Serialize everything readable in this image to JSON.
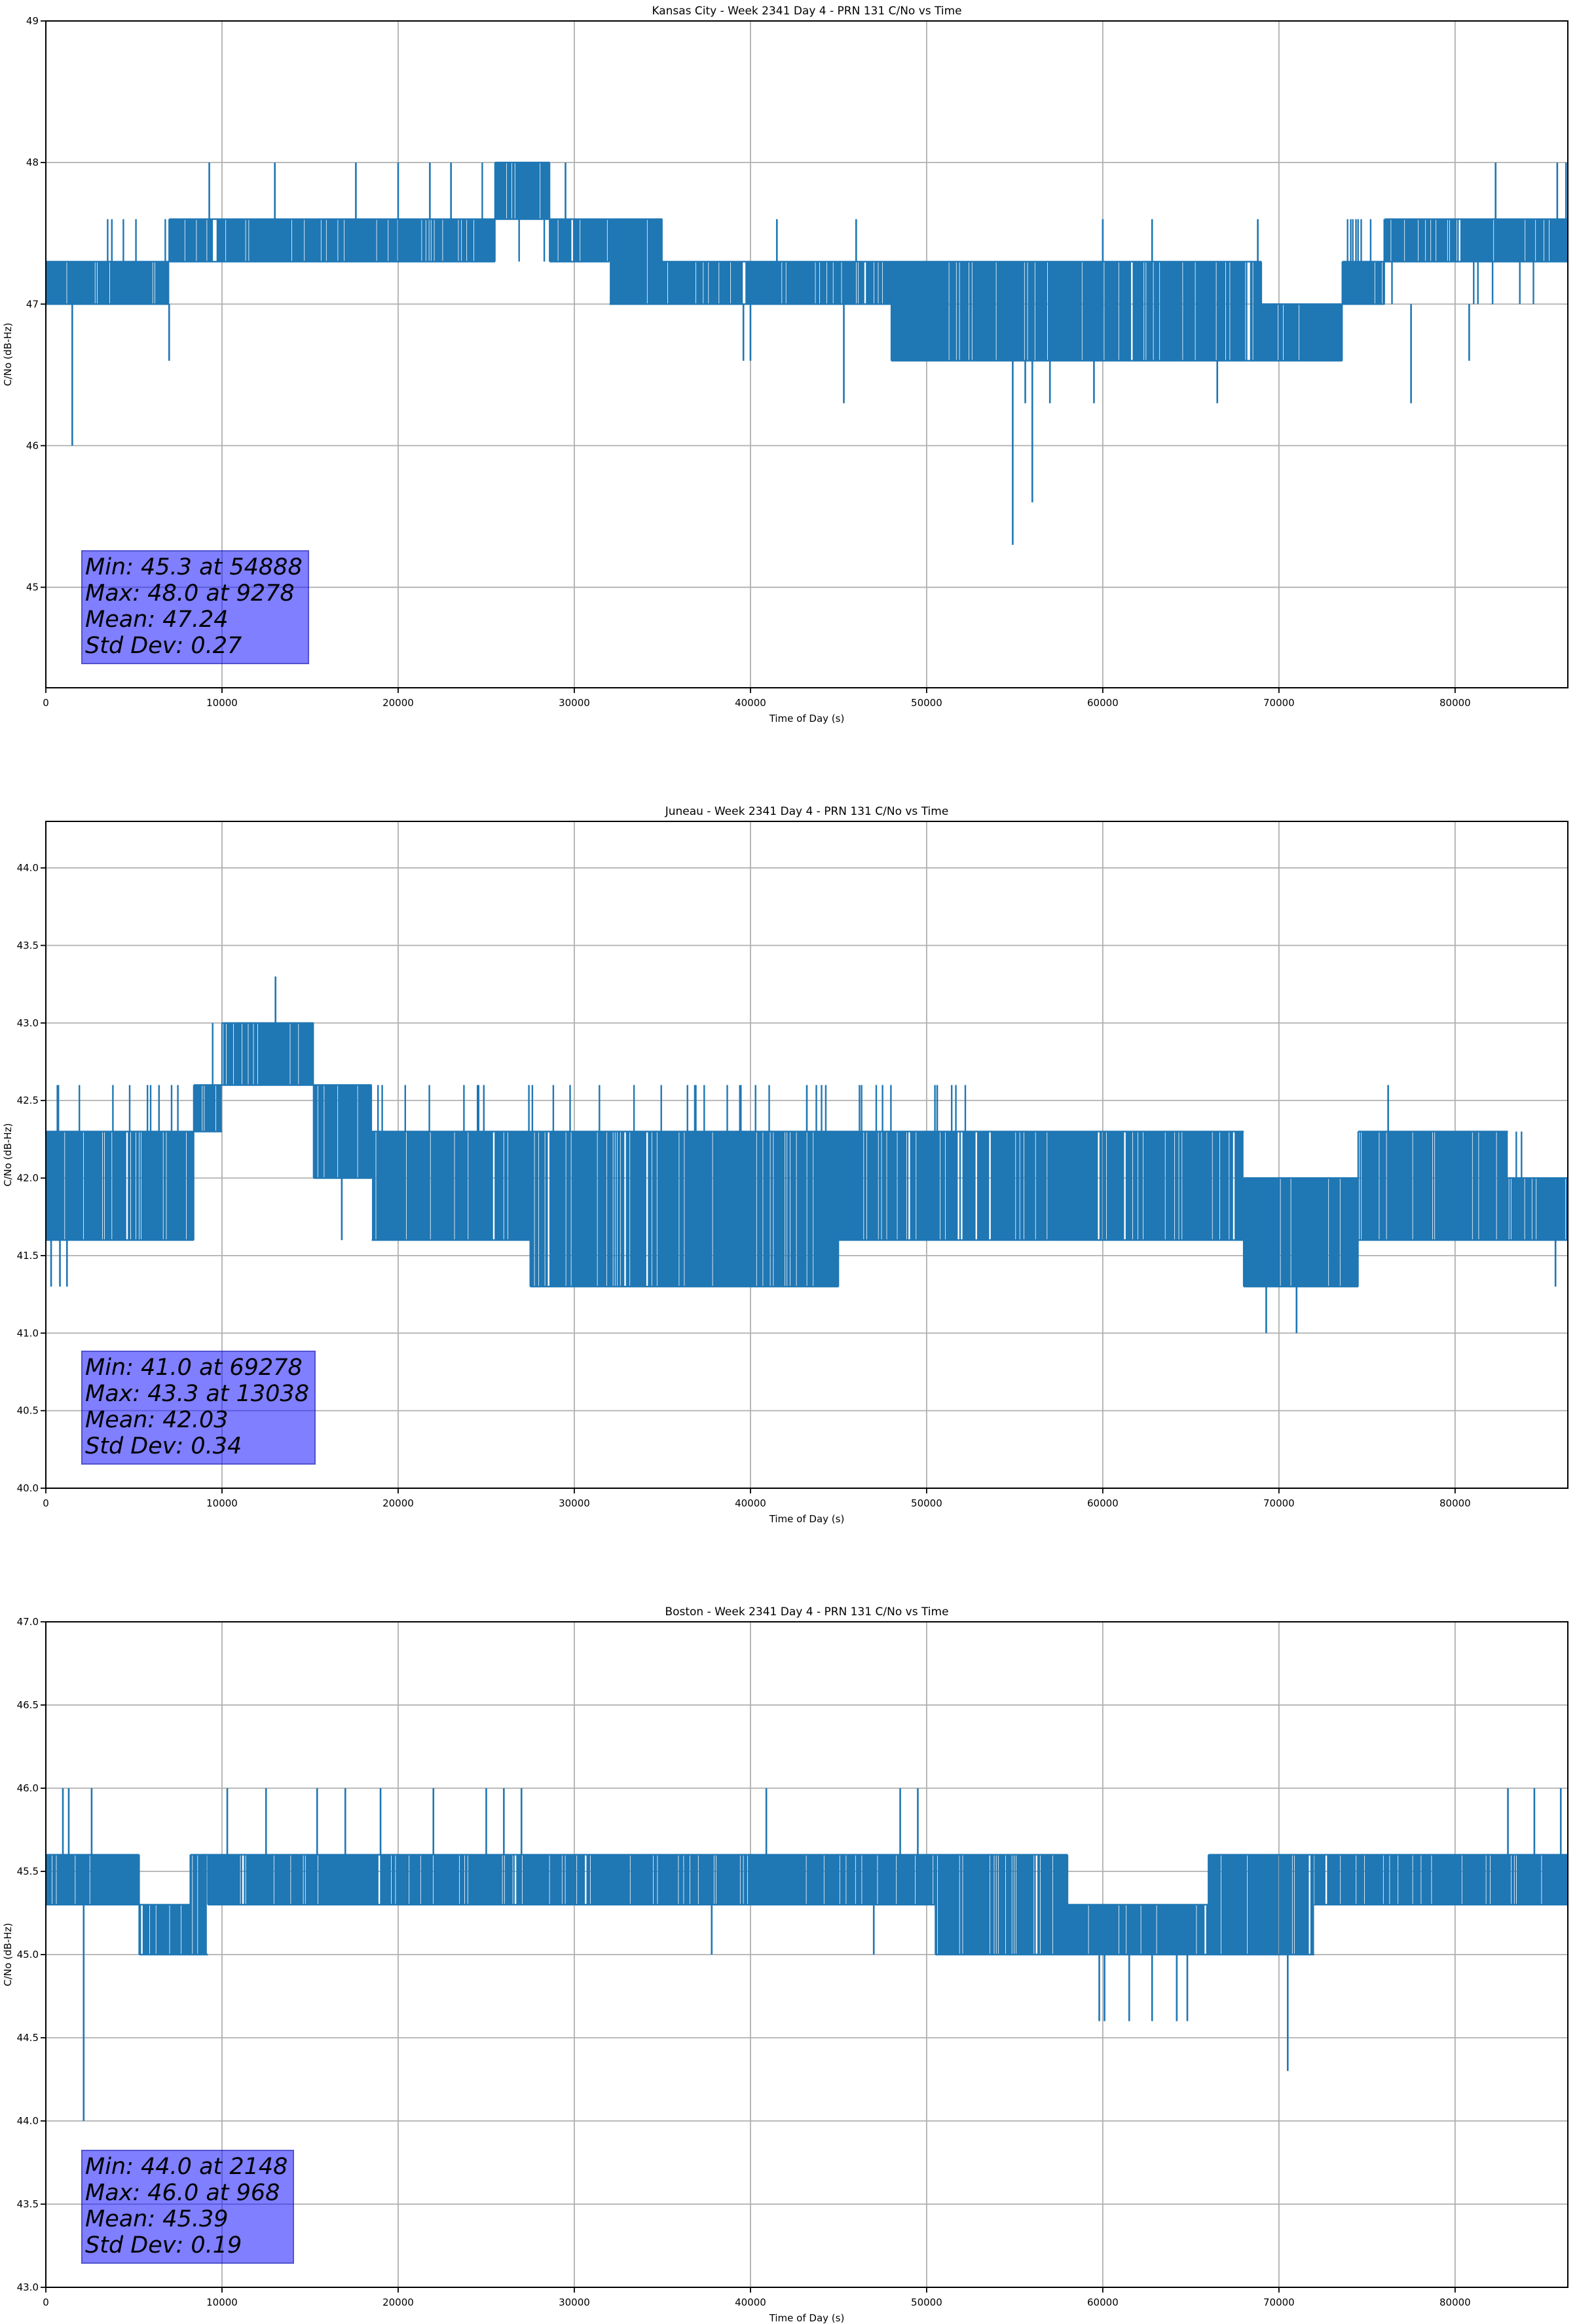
{
  "chart_data": [
    {
      "type": "line",
      "title": "Kansas City - Week 2341 Day 4 - PRN 131 C/No vs Time",
      "xlabel": "Time of Day (s)",
      "ylabel": "C/No (dB-Hz)",
      "xlim": [
        0,
        86400
      ],
      "ylim": [
        44.29,
        49
      ],
      "grid": true,
      "line_color": "#1f77b4",
      "xticks": [
        0,
        10000,
        20000,
        30000,
        40000,
        50000,
        60000,
        70000,
        80000
      ],
      "xtick_labels": [
        "0",
        "10000",
        "20000",
        "30000",
        "40000",
        "50000",
        "60000",
        "70000",
        "80000"
      ],
      "yticks": [
        45,
        46,
        47,
        48,
        49
      ],
      "ytick_labels": [
        "45",
        "46",
        "47",
        "48",
        "49"
      ],
      "stats": {
        "min": "Min: 45.3 at 54888",
        "max": "Max: 48.0 at 9278",
        "mean": "Mean: 47.24",
        "std": "Std Dev: 0.27"
      },
      "bands": [
        {
          "x": [
            0,
            7000
          ],
          "y": [
            47.0,
            47.3
          ],
          "alt": 47.6
        },
        {
          "x": [
            7000,
            24000
          ],
          "y": [
            47.3,
            47.6
          ],
          "alt": 47.6
        },
        {
          "x": [
            24000,
            25500
          ],
          "y": [
            47.3,
            47.6
          ],
          "alt": 48.0
        },
        {
          "x": [
            25500,
            28600
          ],
          "y": [
            47.6,
            48.0
          ],
          "alt": 47.3
        },
        {
          "x": [
            28600,
            32000
          ],
          "y": [
            47.3,
            47.6
          ],
          "alt": 47.6
        },
        {
          "x": [
            32000,
            35000
          ],
          "y": [
            47.0,
            47.6
          ],
          "alt": 47.3
        },
        {
          "x": [
            35000,
            48000
          ],
          "y": [
            47.0,
            47.3
          ],
          "alt": 47.3
        },
        {
          "x": [
            48000,
            69000
          ],
          "y": [
            46.6,
            47.3
          ],
          "alt": 47.0
        },
        {
          "x": [
            69000,
            73600
          ],
          "y": [
            46.6,
            47.0
          ],
          "alt": 47.0
        },
        {
          "x": [
            73600,
            76000
          ],
          "y": [
            47.0,
            47.3
          ],
          "alt": 47.6
        },
        {
          "x": [
            76000,
            86400
          ],
          "y": [
            47.3,
            47.6
          ],
          "alt": 47.0
        }
      ],
      "spikes": [
        {
          "x": 1500,
          "y": [
            47.0,
            46.0
          ]
        },
        {
          "x": 7000,
          "y": [
            47.0,
            46.6
          ]
        },
        {
          "x": 9278,
          "y": [
            47.6,
            48.0
          ]
        },
        {
          "x": 13000,
          "y": [
            47.6,
            48.0
          ]
        },
        {
          "x": 17600,
          "y": [
            47.6,
            48.0
          ]
        },
        {
          "x": 20000,
          "y": [
            47.6,
            48.0
          ]
        },
        {
          "x": 21800,
          "y": [
            47.6,
            48.0
          ]
        },
        {
          "x": 23000,
          "y": [
            47.6,
            48.0
          ]
        },
        {
          "x": 29500,
          "y": [
            47.6,
            48.0
          ]
        },
        {
          "x": 39600,
          "y": [
            47.0,
            46.6
          ]
        },
        {
          "x": 40000,
          "y": [
            47.0,
            46.6
          ]
        },
        {
          "x": 45300,
          "y": [
            47.0,
            46.3
          ]
        },
        {
          "x": 46000,
          "y": [
            47.3,
            47.6
          ]
        },
        {
          "x": 41500,
          "y": [
            47.3,
            47.6
          ]
        },
        {
          "x": 54888,
          "y": [
            46.6,
            45.3
          ]
        },
        {
          "x": 56000,
          "y": [
            46.6,
            45.6
          ]
        },
        {
          "x": 55600,
          "y": [
            46.6,
            46.3
          ]
        },
        {
          "x": 57000,
          "y": [
            46.6,
            46.3
          ]
        },
        {
          "x": 59500,
          "y": [
            46.6,
            46.3
          ]
        },
        {
          "x": 66500,
          "y": [
            46.6,
            46.3
          ]
        },
        {
          "x": 62800,
          "y": [
            47.3,
            47.6
          ]
        },
        {
          "x": 60000,
          "y": [
            47.3,
            47.6
          ]
        },
        {
          "x": 68800,
          "y": [
            47.3,
            47.6
          ]
        },
        {
          "x": 77500,
          "y": [
            47.0,
            46.3
          ]
        },
        {
          "x": 80800,
          "y": [
            47.0,
            46.6
          ]
        },
        {
          "x": 82300,
          "y": [
            47.6,
            48.0
          ]
        },
        {
          "x": 85800,
          "y": [
            47.6,
            48.0
          ]
        },
        {
          "x": 86300,
          "y": [
            47.6,
            48.0
          ]
        }
      ]
    },
    {
      "type": "line",
      "title": "Juneau - Week 2341 Day 4 - PRN 131 C/No vs Time",
      "xlabel": "Time of Day (s)",
      "ylabel": "C/No (dB-Hz)",
      "xlim": [
        0,
        86400
      ],
      "ylim": [
        40.0,
        44.3
      ],
      "grid": true,
      "line_color": "#1f77b4",
      "xticks": [
        0,
        10000,
        20000,
        30000,
        40000,
        50000,
        60000,
        70000,
        80000
      ],
      "xtick_labels": [
        "0",
        "10000",
        "20000",
        "30000",
        "40000",
        "50000",
        "60000",
        "70000",
        "80000"
      ],
      "yticks": [
        40.0,
        40.5,
        41.0,
        41.5,
        42.0,
        42.5,
        43.0,
        43.5,
        44.0
      ],
      "ytick_labels": [
        "40.0",
        "40.5",
        "41.0",
        "41.5",
        "42.0",
        "42.5",
        "43.0",
        "43.5",
        "44.0"
      ],
      "stats": {
        "min": "Min: 41.0 at 69278",
        "max": "Max: 43.3 at 13038",
        "mean": "Mean: 42.03",
        "std": "Std Dev: 0.34"
      },
      "bands": [
        {
          "x": [
            0,
            8400
          ],
          "y": [
            41.6,
            42.3
          ],
          "alt": 42.6
        },
        {
          "x": [
            8400,
            10000
          ],
          "y": [
            42.3,
            42.6
          ],
          "alt": 43.0
        },
        {
          "x": [
            10000,
            15200
          ],
          "y": [
            42.6,
            43.0
          ],
          "alt": 42.6
        },
        {
          "x": [
            15200,
            18500
          ],
          "y": [
            42.0,
            42.6
          ],
          "alt": 42.3
        },
        {
          "x": [
            18500,
            27500
          ],
          "y": [
            41.6,
            42.3
          ],
          "alt": 42.6
        },
        {
          "x": [
            27500,
            45000
          ],
          "y": [
            41.3,
            42.3
          ],
          "alt": 42.6
        },
        {
          "x": [
            45000,
            57000
          ],
          "y": [
            41.6,
            42.3
          ],
          "alt": 42.6
        },
        {
          "x": [
            57000,
            68000
          ],
          "y": [
            41.6,
            42.3
          ],
          "alt": 42.0
        },
        {
          "x": [
            68000,
            74500
          ],
          "y": [
            41.3,
            42.0
          ],
          "alt": 41.6
        },
        {
          "x": [
            74500,
            83000
          ],
          "y": [
            41.6,
            42.3
          ],
          "alt": 42.0
        },
        {
          "x": [
            83000,
            86400
          ],
          "y": [
            41.6,
            42.0
          ],
          "alt": 42.3
        }
      ],
      "spikes": [
        {
          "x": 300,
          "y": [
            41.6,
            41.3
          ]
        },
        {
          "x": 800,
          "y": [
            41.6,
            41.3
          ]
        },
        {
          "x": 1200,
          "y": [
            41.6,
            41.3
          ]
        },
        {
          "x": 13038,
          "y": [
            43.0,
            43.3
          ]
        },
        {
          "x": 16800,
          "y": [
            42.0,
            41.6
          ]
        },
        {
          "x": 43200,
          "y": [
            42.3,
            42.6
          ]
        },
        {
          "x": 50600,
          "y": [
            42.3,
            42.6
          ]
        },
        {
          "x": 69278,
          "y": [
            41.3,
            41.0
          ]
        },
        {
          "x": 71000,
          "y": [
            41.3,
            41.0
          ]
        },
        {
          "x": 76200,
          "y": [
            42.3,
            42.6
          ]
        },
        {
          "x": 85700,
          "y": [
            41.6,
            41.3
          ]
        }
      ]
    },
    {
      "type": "line",
      "title": "Boston - Week 2341 Day 4 - PRN 131 C/No vs Time",
      "xlabel": "Time of Day (s)",
      "ylabel": "C/No (dB-Hz)",
      "xlim": [
        0,
        86400
      ],
      "ylim": [
        43.0,
        47.0
      ],
      "grid": true,
      "line_color": "#1f77b4",
      "xticks": [
        0,
        10000,
        20000,
        30000,
        40000,
        50000,
        60000,
        70000,
        80000
      ],
      "xtick_labels": [
        "0",
        "10000",
        "20000",
        "30000",
        "40000",
        "50000",
        "60000",
        "70000",
        "80000"
      ],
      "yticks": [
        43.0,
        43.5,
        44.0,
        44.5,
        45.0,
        45.5,
        46.0,
        46.5,
        47.0
      ],
      "ytick_labels": [
        "43.0",
        "43.5",
        "44.0",
        "44.5",
        "45.0",
        "45.5",
        "46.0",
        "46.5",
        "47.0"
      ],
      "stats": {
        "min": "Min: 44.0 at 2148",
        "max": "Max: 46.0 at 968",
        "mean": "Mean: 45.39",
        "std": "Std Dev: 0.19"
      },
      "bands": [
        {
          "x": [
            0,
            5300
          ],
          "y": [
            45.3,
            45.6
          ],
          "alt": 45.6
        },
        {
          "x": [
            5300,
            8200
          ],
          "y": [
            45.0,
            45.3
          ],
          "alt": 45.3
        },
        {
          "x": [
            8200,
            9200
          ],
          "y": [
            45.0,
            45.6
          ],
          "alt": 45.3
        },
        {
          "x": [
            9200,
            50500
          ],
          "y": [
            45.3,
            45.6
          ],
          "alt": 45.6
        },
        {
          "x": [
            50500,
            58000
          ],
          "y": [
            45.0,
            45.6
          ],
          "alt": 45.3
        },
        {
          "x": [
            58000,
            66000
          ],
          "y": [
            45.0,
            45.3
          ],
          "alt": 45.3
        },
        {
          "x": [
            66000,
            72000
          ],
          "y": [
            45.0,
            45.6
          ],
          "alt": 45.3
        },
        {
          "x": [
            72000,
            86400
          ],
          "y": [
            45.3,
            45.6
          ],
          "alt": 45.6
        }
      ],
      "spikes": [
        {
          "x": 968,
          "y": [
            45.6,
            46.0
          ]
        },
        {
          "x": 1300,
          "y": [
            45.6,
            46.0
          ]
        },
        {
          "x": 2148,
          "y": [
            45.3,
            44.0
          ]
        },
        {
          "x": 2600,
          "y": [
            45.6,
            46.0
          ]
        },
        {
          "x": 10300,
          "y": [
            45.6,
            46.0
          ]
        },
        {
          "x": 12500,
          "y": [
            45.6,
            46.0
          ]
        },
        {
          "x": 15400,
          "y": [
            45.6,
            46.0
          ]
        },
        {
          "x": 17000,
          "y": [
            45.6,
            46.0
          ]
        },
        {
          "x": 19000,
          "y": [
            45.6,
            46.0
          ]
        },
        {
          "x": 22000,
          "y": [
            45.6,
            46.0
          ]
        },
        {
          "x": 25000,
          "y": [
            45.6,
            46.0
          ]
        },
        {
          "x": 26000,
          "y": [
            45.6,
            46.0
          ]
        },
        {
          "x": 27000,
          "y": [
            45.6,
            46.0
          ]
        },
        {
          "x": 37800,
          "y": [
            45.3,
            45.0
          ]
        },
        {
          "x": 40900,
          "y": [
            45.6,
            46.0
          ]
        },
        {
          "x": 47000,
          "y": [
            45.3,
            45.0
          ]
        },
        {
          "x": 48500,
          "y": [
            45.6,
            46.0
          ]
        },
        {
          "x": 49500,
          "y": [
            45.6,
            46.0
          ]
        },
        {
          "x": 59800,
          "y": [
            45.0,
            44.6
          ]
        },
        {
          "x": 60100,
          "y": [
            45.0,
            44.6
          ]
        },
        {
          "x": 61500,
          "y": [
            45.0,
            44.6
          ]
        },
        {
          "x": 62800,
          "y": [
            45.0,
            44.6
          ]
        },
        {
          "x": 64200,
          "y": [
            45.0,
            44.6
          ]
        },
        {
          "x": 64800,
          "y": [
            45.0,
            44.6
          ]
        },
        {
          "x": 70500,
          "y": [
            45.0,
            44.3
          ]
        },
        {
          "x": 83000,
          "y": [
            45.6,
            46.0
          ]
        },
        {
          "x": 84500,
          "y": [
            45.6,
            46.0
          ]
        },
        {
          "x": 86000,
          "y": [
            45.6,
            46.0
          ]
        }
      ]
    }
  ]
}
